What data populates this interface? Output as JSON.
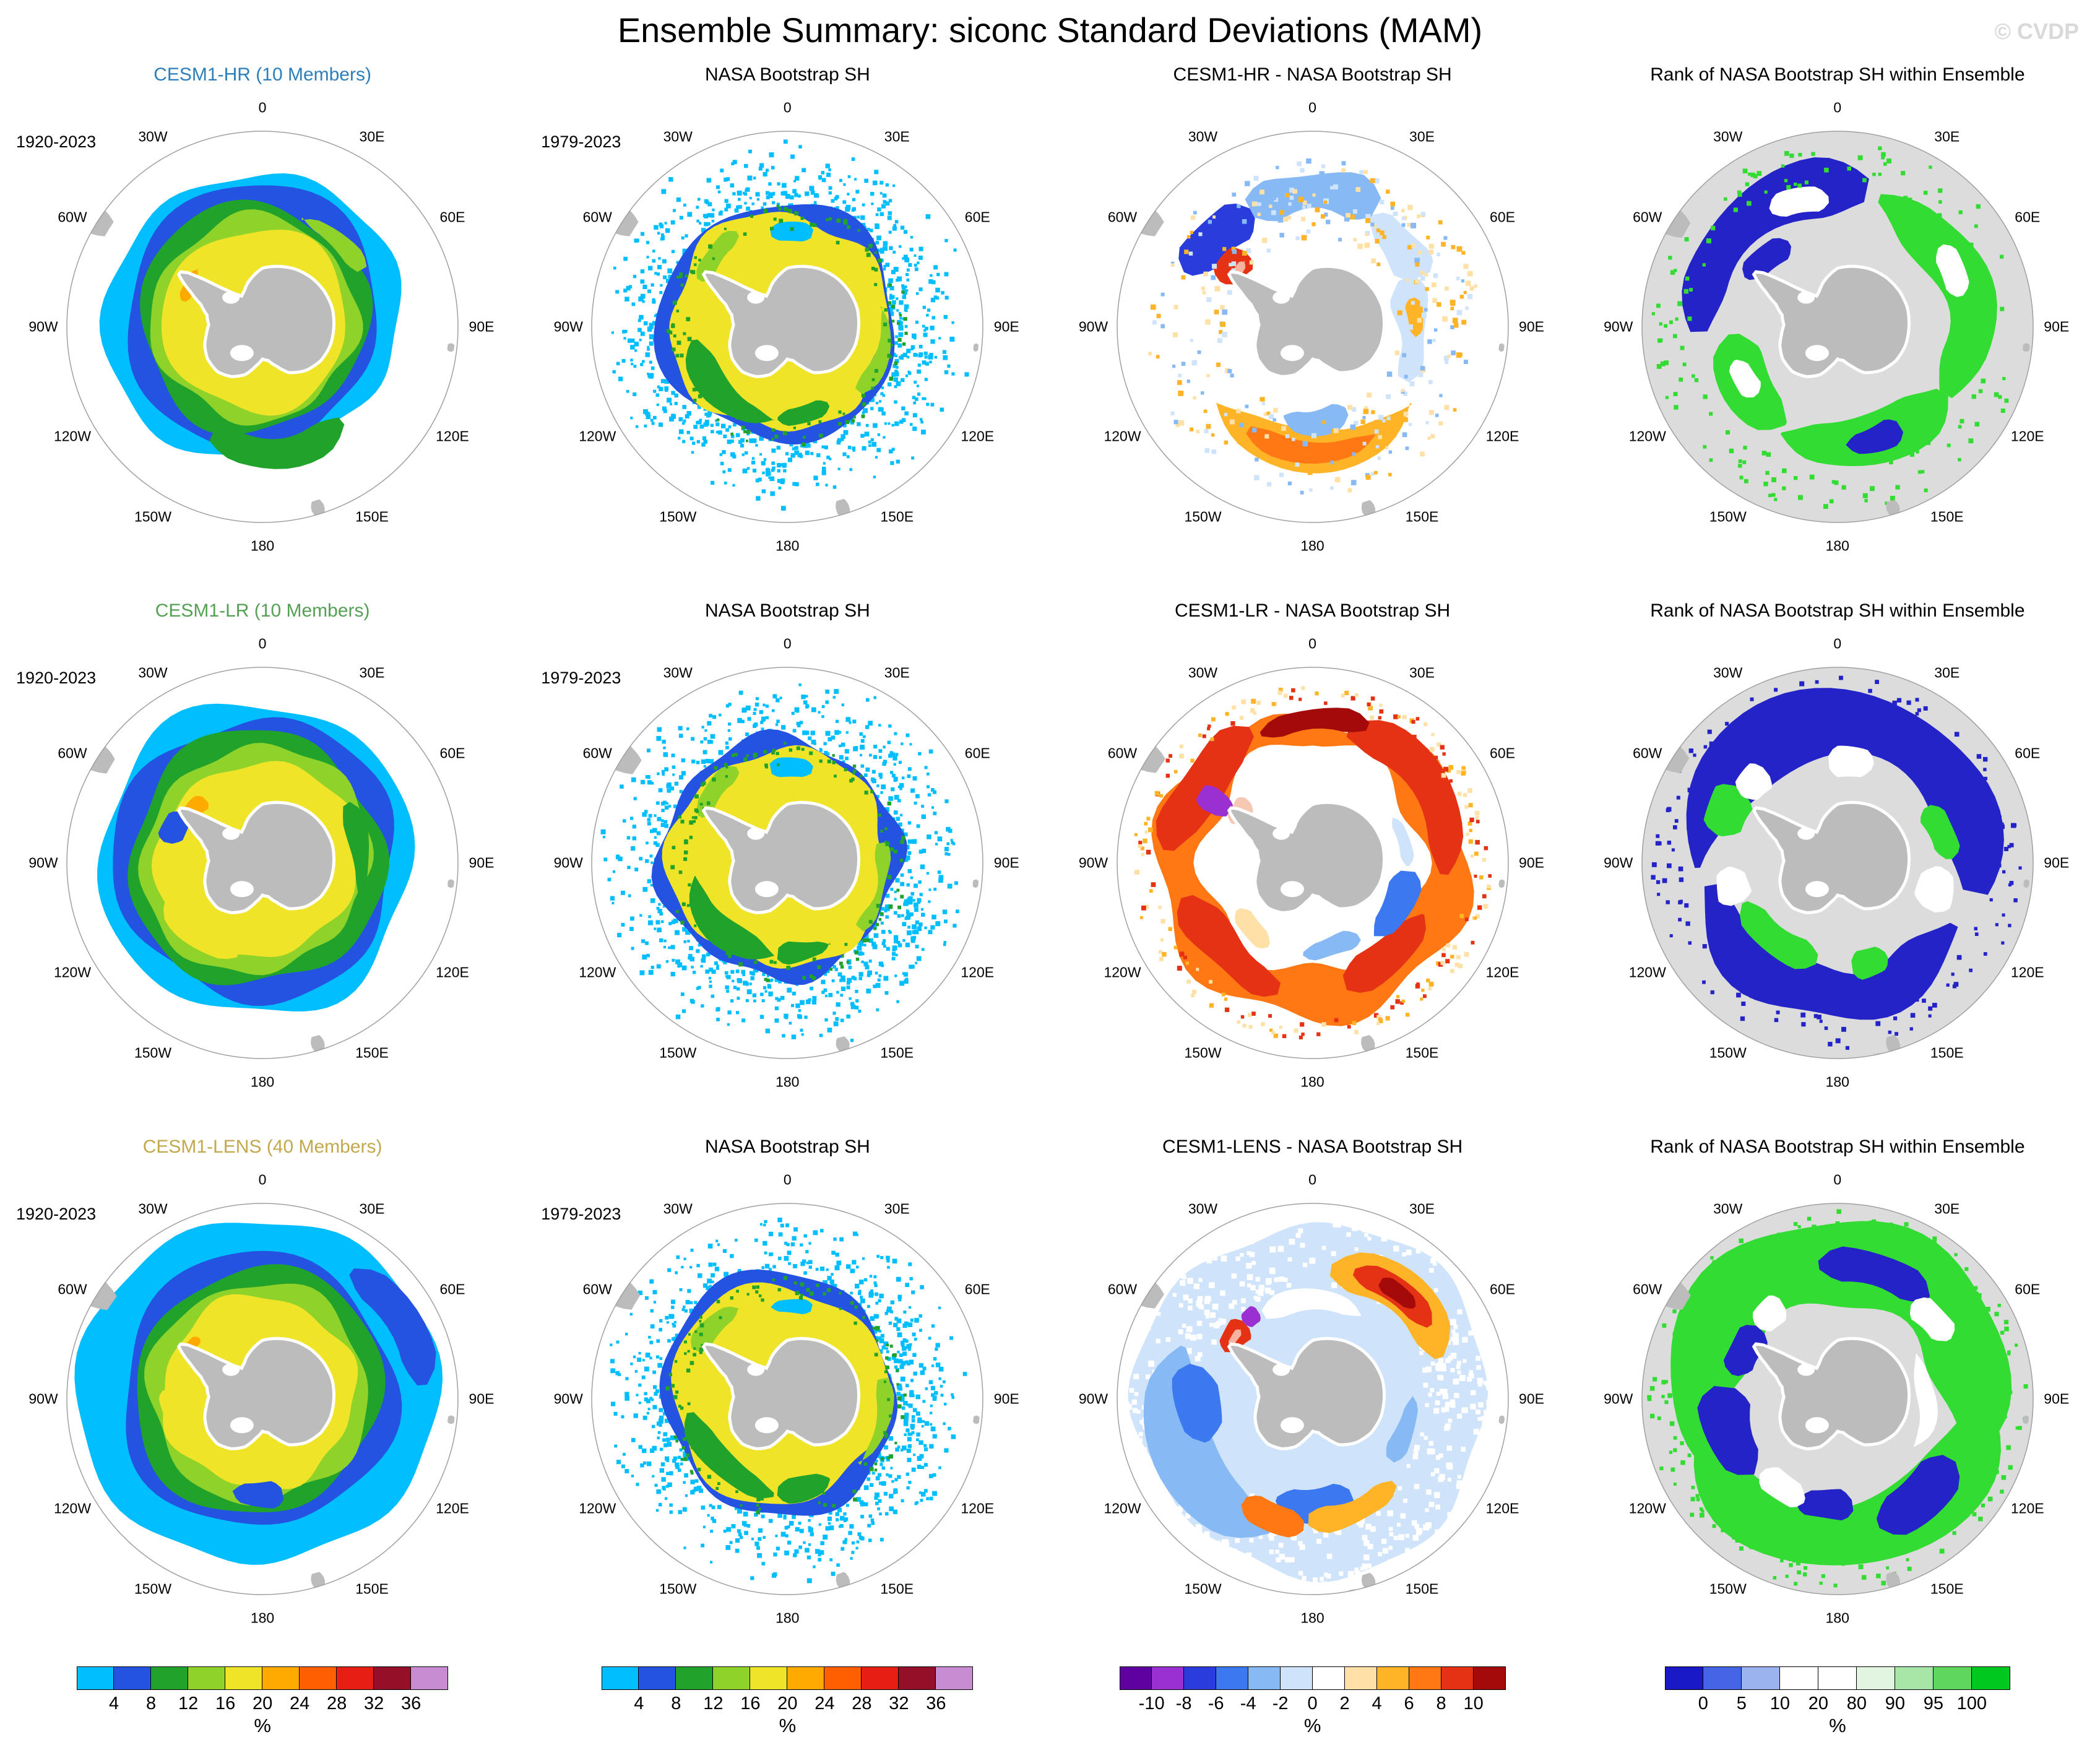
{
  "title": "Ensemble Summary: siconc Standard Deviations (MAM)",
  "watermark": "© CVDP",
  "map": {
    "lon_labels": [
      "0",
      "30E",
      "60E",
      "90E",
      "120E",
      "150E",
      "180",
      "150W",
      "120W",
      "90W",
      "60W",
      "30W"
    ]
  },
  "rows": [
    {
      "panels": [
        {
          "title": "CESM1-HR (10 Members)",
          "title_color": "#2c7fb8",
          "period": "1920-2023",
          "kind": "sd"
        },
        {
          "title": "NASA Bootstrap SH",
          "title_color": "#000000",
          "period": "1979-2023",
          "kind": "obs"
        },
        {
          "title": "CESM1-HR - NASA Bootstrap SH",
          "title_color": "#000000",
          "period": "",
          "kind": "diff"
        },
        {
          "title": "Rank of NASA Bootstrap SH within Ensemble",
          "title_color": "#000000",
          "period": "",
          "kind": "rank"
        }
      ]
    },
    {
      "panels": [
        {
          "title": "CESM1-LR (10 Members)",
          "title_color": "#55a055",
          "period": "1920-2023",
          "kind": "sd"
        },
        {
          "title": "NASA Bootstrap SH",
          "title_color": "#000000",
          "period": "1979-2023",
          "kind": "obs"
        },
        {
          "title": "CESM1-LR - NASA Bootstrap SH",
          "title_color": "#000000",
          "period": "",
          "kind": "diff"
        },
        {
          "title": "Rank of NASA Bootstrap SH within Ensemble",
          "title_color": "#000000",
          "period": "",
          "kind": "rank"
        }
      ]
    },
    {
      "panels": [
        {
          "title": "CESM1-LENS (40 Members)",
          "title_color": "#c3a84c",
          "period": "1920-2023",
          "kind": "sd"
        },
        {
          "title": "NASA Bootstrap SH",
          "title_color": "#000000",
          "period": "1979-2023",
          "kind": "obs"
        },
        {
          "title": "CESM1-LENS - NASA Bootstrap SH",
          "title_color": "#000000",
          "period": "",
          "kind": "diff"
        },
        {
          "title": "Rank of NASA Bootstrap SH within Ensemble",
          "title_color": "#000000",
          "period": "",
          "kind": "rank"
        }
      ]
    }
  ],
  "colorbars": [
    {
      "unit": "%",
      "ticks": [
        "4",
        "8",
        "12",
        "16",
        "20",
        "24",
        "28",
        "32",
        "36"
      ],
      "colors": [
        "#00beff",
        "#2353e0",
        "#21a32b",
        "#8ed22a",
        "#f0e428",
        "#ffaa00",
        "#ff5f00",
        "#e61e14",
        "#960f28",
        "#c88cd2"
      ]
    },
    {
      "unit": "%",
      "ticks": [
        "4",
        "8",
        "12",
        "16",
        "20",
        "24",
        "28",
        "32",
        "36"
      ],
      "colors": [
        "#00beff",
        "#2353e0",
        "#21a32b",
        "#8ed22a",
        "#f0e428",
        "#ffaa00",
        "#ff5f00",
        "#e61e14",
        "#960f28",
        "#c88cd2"
      ]
    },
    {
      "unit": "%",
      "ticks": [
        "-10",
        "-8",
        "-6",
        "-4",
        "-2",
        "0",
        "2",
        "4",
        "6",
        "8",
        "10"
      ],
      "colors": [
        "#5f00a0",
        "#9b30d2",
        "#2a3cdc",
        "#3c78f0",
        "#87b9f5",
        "#cfe4fa",
        "#ffffff",
        "#ffe1a8",
        "#ffb428",
        "#ff7814",
        "#e63214",
        "#a50a0a"
      ]
    },
    {
      "unit": "%",
      "ticks": [
        "0",
        "5",
        "10",
        "20",
        "80",
        "90",
        "95",
        "100"
      ],
      "colors": [
        "#1919c8",
        "#4664e6",
        "#9bb4f0",
        "#ffffff",
        "#ffffff",
        "#e1f5e1",
        "#a8e6a8",
        "#5fd75f",
        "#00c81e"
      ]
    }
  ],
  "chart_data": {
    "type": "heatmap",
    "title": "Ensemble Summary: siconc Standard Deviations (MAM)",
    "variable": "siconc",
    "statistic": "standard deviation",
    "season": "MAM",
    "grid": {
      "rows": 3,
      "columns": 4
    },
    "ensembles": [
      {
        "name": "CESM1-HR",
        "members": 10,
        "period": "1920-2023"
      },
      {
        "name": "CESM1-LR",
        "members": 10,
        "period": "1920-2023"
      },
      {
        "name": "CESM1-LENS",
        "members": 40,
        "period": "1920-2023"
      }
    ],
    "reference_observation": {
      "name": "NASA Bootstrap SH",
      "period": "1979-2023"
    },
    "panels": [
      {
        "row": 1,
        "col": 1,
        "title": "CESM1-HR (10 Members)",
        "period": "1920-2023",
        "colorbar": "std"
      },
      {
        "row": 1,
        "col": 2,
        "title": "NASA Bootstrap SH",
        "period": "1979-2023",
        "colorbar": "std"
      },
      {
        "row": 1,
        "col": 3,
        "title": "CESM1-HR - NASA Bootstrap SH",
        "colorbar": "diff"
      },
      {
        "row": 1,
        "col": 4,
        "title": "Rank of NASA Bootstrap SH within Ensemble",
        "colorbar": "rank"
      },
      {
        "row": 2,
        "col": 1,
        "title": "CESM1-LR (10 Members)",
        "period": "1920-2023",
        "colorbar": "std"
      },
      {
        "row": 2,
        "col": 2,
        "title": "NASA Bootstrap SH",
        "period": "1979-2023",
        "colorbar": "std"
      },
      {
        "row": 2,
        "col": 3,
        "title": "CESM1-LR - NASA Bootstrap SH",
        "colorbar": "diff"
      },
      {
        "row": 2,
        "col": 4,
        "title": "Rank of NASA Bootstrap SH within Ensemble",
        "colorbar": "rank"
      },
      {
        "row": 3,
        "col": 1,
        "title": "CESM1-LENS (40 Members)",
        "period": "1920-2023",
        "colorbar": "std"
      },
      {
        "row": 3,
        "col": 2,
        "title": "NASA Bootstrap SH",
        "period": "1979-2023",
        "colorbar": "std"
      },
      {
        "row": 3,
        "col": 3,
        "title": "CESM1-LENS - NASA Bootstrap SH",
        "colorbar": "diff"
      },
      {
        "row": 3,
        "col": 4,
        "title": "Rank of NASA Bootstrap SH within Ensemble",
        "colorbar": "rank"
      }
    ],
    "colorbars": {
      "std": {
        "unit": "%",
        "ticks": [
          4,
          8,
          12,
          16,
          20,
          24,
          28,
          32,
          36
        ],
        "colors": [
          "#00beff",
          "#2353e0",
          "#21a32b",
          "#8ed22a",
          "#f0e428",
          "#ffaa00",
          "#ff5f00",
          "#e61e14",
          "#960f28",
          "#c88cd2"
        ]
      },
      "diff": {
        "unit": "%",
        "ticks": [
          -10,
          -8,
          -6,
          -4,
          -2,
          0,
          2,
          4,
          6,
          8,
          10
        ],
        "colors": [
          "#5f00a0",
          "#9b30d2",
          "#2a3cdc",
          "#3c78f0",
          "#87b9f5",
          "#cfe4fa",
          "#ffffff",
          "#ffe1a8",
          "#ffb428",
          "#ff7814",
          "#e63214",
          "#a50a0a"
        ]
      },
      "rank": {
        "unit": "%",
        "ticks": [
          0,
          5,
          10,
          20,
          80,
          90,
          95,
          100
        ],
        "colors": [
          "#1919c8",
          "#4664e6",
          "#9bb4f0",
          "#ffffff",
          "#ffffff",
          "#e1f5e1",
          "#a8e6a8",
          "#5fd75f",
          "#00c81e"
        ]
      }
    },
    "longitude_ring_labels": [
      "0",
      "30E",
      "60E",
      "90E",
      "120E",
      "150E",
      "180",
      "150W",
      "120W",
      "90W",
      "60W",
      "30W"
    ]
  }
}
